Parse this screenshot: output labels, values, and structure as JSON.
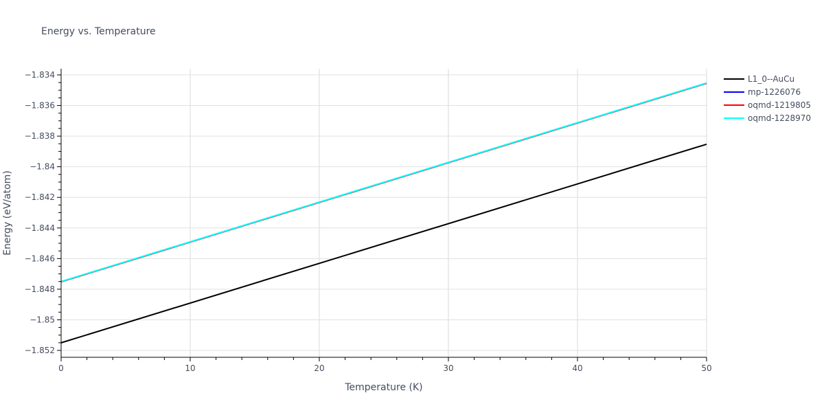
{
  "chart_data": {
    "type": "line",
    "title": "Energy vs. Temperature",
    "xlabel": "Temperature (K)",
    "ylabel": "Energy (eV/atom)",
    "xlim": [
      0,
      50
    ],
    "ylim": [
      -1.8523,
      -1.8336
    ],
    "x_ticks": [
      0,
      10,
      20,
      30,
      40,
      50
    ],
    "x_tick_labels": [
      "0",
      "10",
      "20",
      "30",
      "40",
      "50"
    ],
    "y_ticks": [
      -1.852,
      -1.85,
      -1.848,
      -1.846,
      -1.844,
      -1.842,
      -1.84,
      -1.838,
      -1.836,
      -1.834
    ],
    "y_tick_labels": [
      "−1.852",
      "−1.85",
      "−1.848",
      "−1.846",
      "−1.844",
      "−1.842",
      "−1.84",
      "−1.838",
      "−1.836",
      "−1.834"
    ],
    "grid": true,
    "legend_position": "right",
    "x": [
      0,
      50
    ],
    "series": [
      {
        "name": "L1_0--AuCu",
        "color": "#000000",
        "values": [
          -1.8515,
          -1.83853
        ]
      },
      {
        "name": "mp-1226076",
        "color": "#0000ff",
        "values": [
          -1.84751,
          -1.83454
        ]
      },
      {
        "name": "oqmd-1219805",
        "color": "#ff0000",
        "values": [
          -1.84752,
          -1.83455
        ]
      },
      {
        "name": "oqmd-1228970",
        "color": "#00ffff",
        "values": [
          -1.8475,
          -1.83453
        ]
      }
    ]
  }
}
